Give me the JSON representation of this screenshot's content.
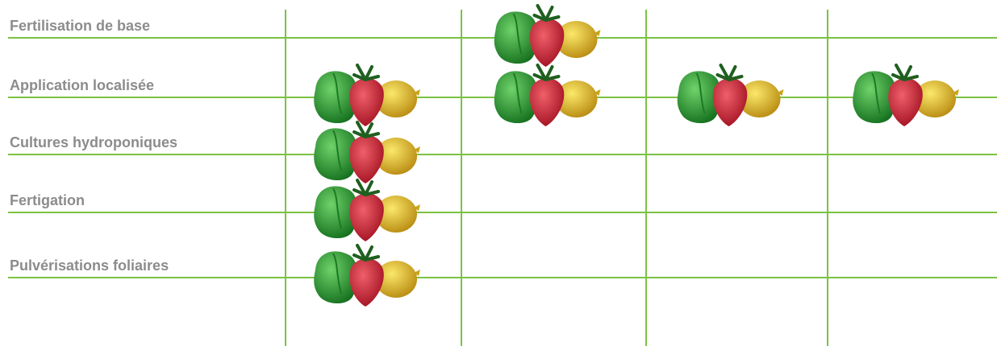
{
  "table": {
    "rows": [
      {
        "label": "Fertilisation de base",
        "cells": [
          false,
          true,
          false,
          false
        ]
      },
      {
        "label": "Application localisée",
        "cells": [
          true,
          true,
          true,
          true
        ]
      },
      {
        "label": "Cultures hydroponiques",
        "cells": [
          true,
          false,
          false,
          false
        ]
      },
      {
        "label": "Fertigation",
        "cells": [
          true,
          false,
          false,
          false
        ]
      },
      {
        "label": "Pulvérisations foliaires",
        "cells": [
          true,
          false,
          false,
          false
        ]
      }
    ]
  }
}
